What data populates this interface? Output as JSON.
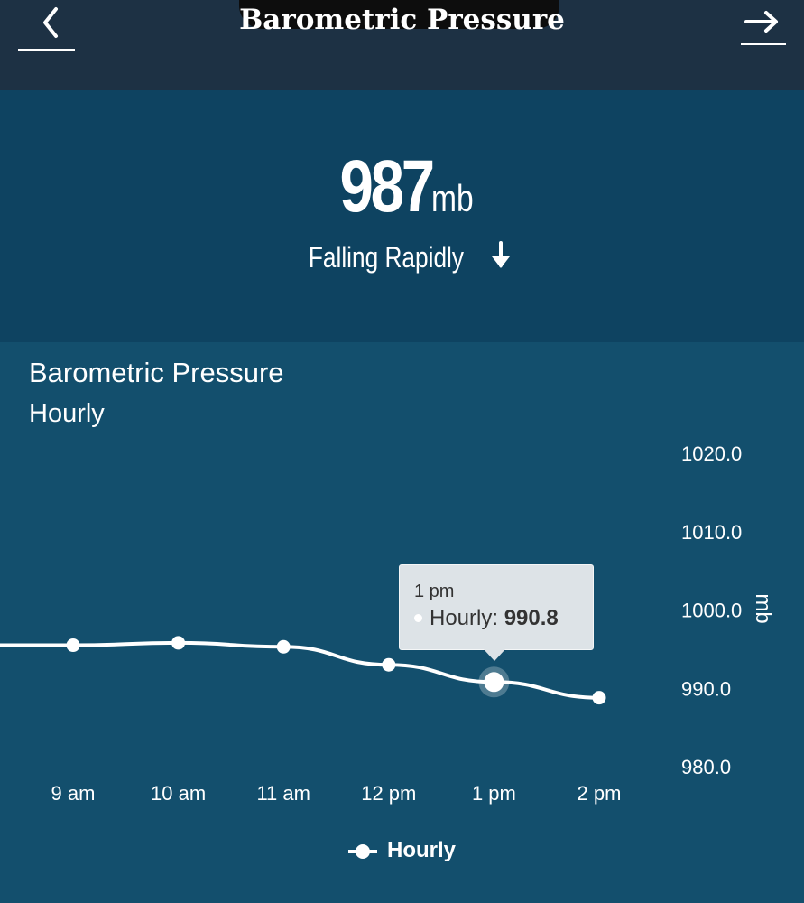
{
  "nav": {
    "title": "Barometric Pressure",
    "back_icon": "chevron-left-icon",
    "next_icon": "arrow-right-icon"
  },
  "reading": {
    "value": "987",
    "unit": "mb",
    "trend": "Falling Rapidly",
    "trend_icon": "arrow-down-icon"
  },
  "card": {
    "title": "Barometric Pressure",
    "subtitle": "Hourly"
  },
  "chart_data": {
    "type": "line",
    "title": "Barometric Pressure",
    "subtitle": "Hourly",
    "x": [
      "9 am",
      "10 am",
      "11 am",
      "12 pm",
      "1 pm",
      "2 pm"
    ],
    "series": [
      {
        "name": "Hourly",
        "values": [
          995.5,
          995.8,
          995.3,
          993.0,
          990.8,
          988.8
        ],
        "color": "#ffffff"
      }
    ],
    "leading_value": 995.5,
    "ylabel": "mb",
    "ylim": [
      980.0,
      1020.0
    ],
    "yticks": [
      "980.0",
      "990.0",
      "1000.0",
      "1010.0",
      "1020.0"
    ],
    "y_axis_side": "right",
    "grid": false,
    "legend_placement": "bottom-center",
    "highlighted_index": 4
  },
  "tooltip": {
    "time": "1 pm",
    "series_label": "Hourly:",
    "value": "990.8"
  },
  "legend": {
    "label": "Hourly"
  },
  "colors": {
    "nav_background": "#1d3144",
    "reading_background": "#0e4361",
    "card_background": "#134f6d",
    "line": "#ffffff"
  }
}
